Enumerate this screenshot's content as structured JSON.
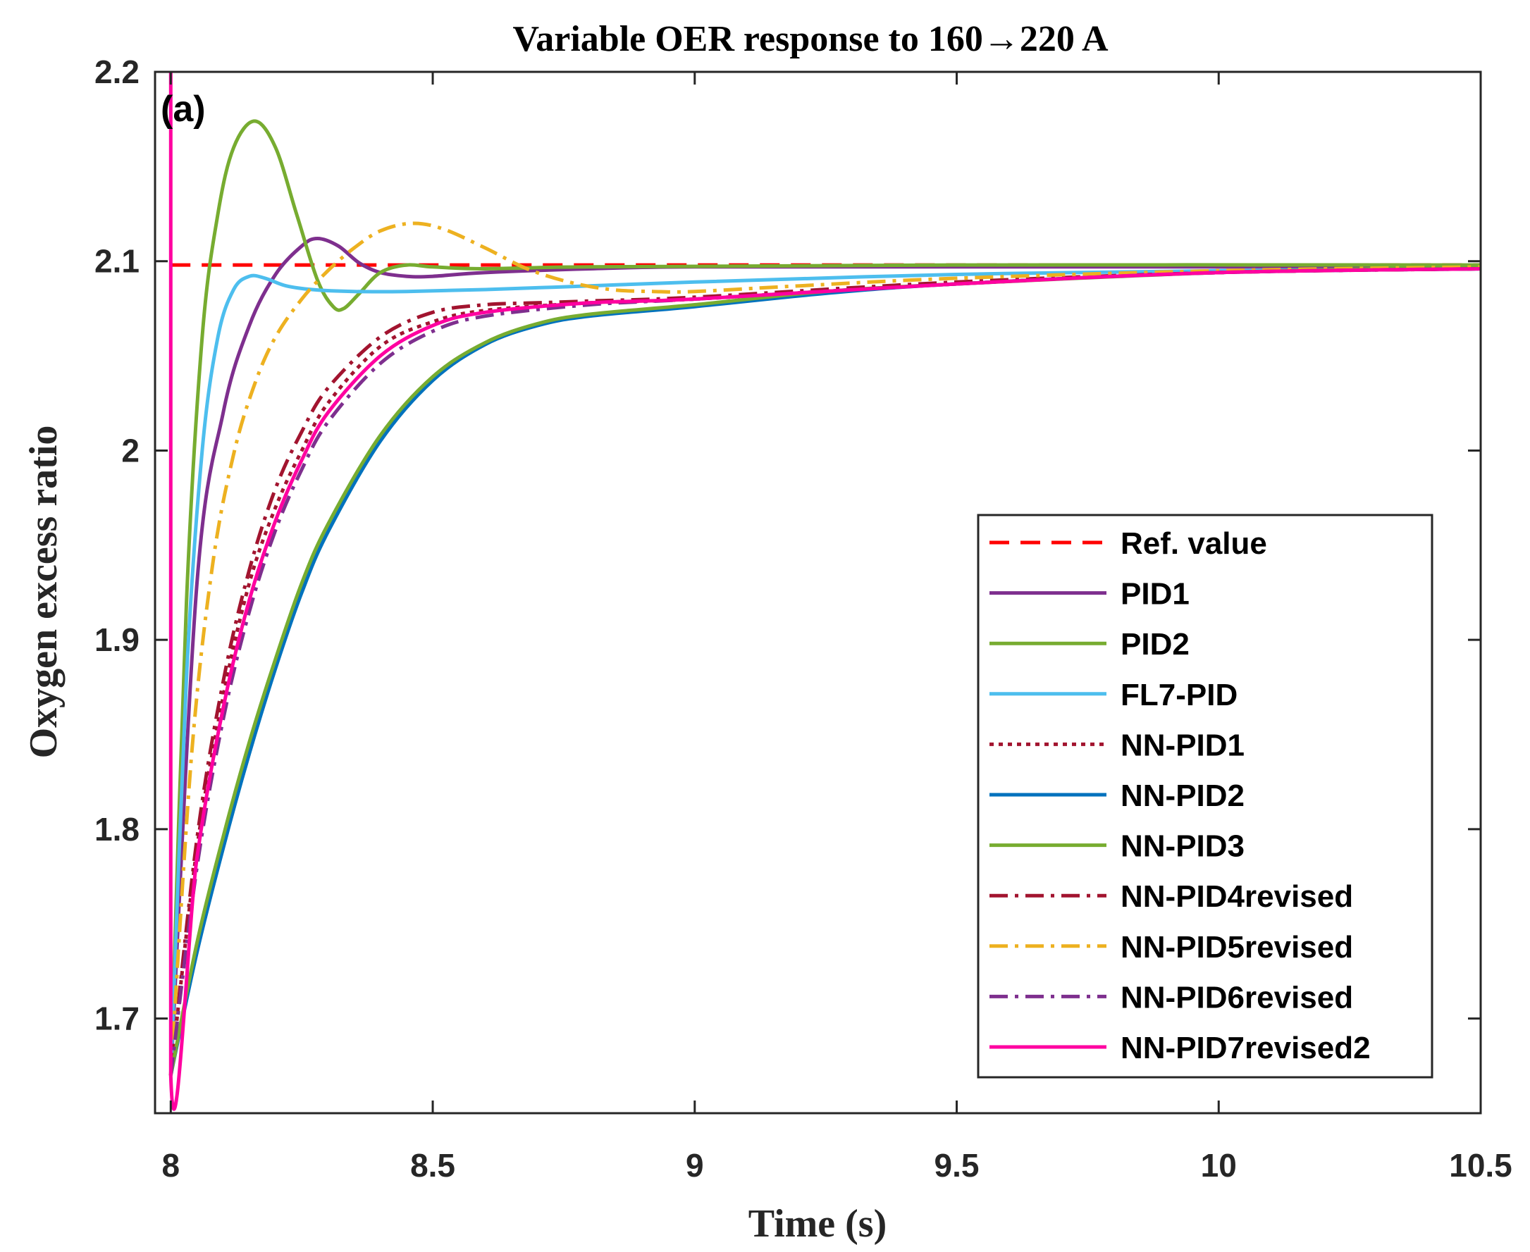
{
  "chart_data": {
    "type": "line",
    "title": "Variable OER response to  160→220 A",
    "panel_label": "(a)",
    "xlabel": "Time (s)",
    "ylabel": "Oxygen excess ratio",
    "xlim": [
      7.97,
      10.5
    ],
    "ylim": [
      1.65,
      2.2
    ],
    "xticks": [
      8,
      8.5,
      9,
      9.5,
      10,
      10.5
    ],
    "xtick_labels": [
      "8",
      "8.5",
      "9",
      "9.5",
      "10",
      "10.5"
    ],
    "yticks": [
      1.7,
      1.8,
      1.9,
      2.0,
      2.1,
      2.2
    ],
    "ytick_labels": [
      "1.7",
      "1.8",
      "1.9",
      "2",
      "2.1",
      "2.2"
    ],
    "grid": false,
    "legend_position": "bottom-right",
    "series": [
      {
        "name": "Ref. value",
        "color": "#ff0000",
        "dash": "dashed",
        "points": [
          [
            8.0,
            2.098
          ],
          [
            10.5,
            2.098
          ]
        ]
      },
      {
        "name": "PID1",
        "color": "#7e2f8e",
        "dash": "solid",
        "points": [
          [
            8.0,
            1.67
          ],
          [
            8.05,
            1.93
          ],
          [
            8.1,
            2.02
          ],
          [
            8.15,
            2.066
          ],
          [
            8.2,
            2.093
          ],
          [
            8.25,
            2.108
          ],
          [
            8.28,
            2.112
          ],
          [
            8.32,
            2.108
          ],
          [
            8.36,
            2.099
          ],
          [
            8.4,
            2.094
          ],
          [
            8.45,
            2.092
          ],
          [
            8.5,
            2.092
          ],
          [
            8.6,
            2.094
          ],
          [
            8.8,
            2.096
          ],
          [
            9.0,
            2.097
          ],
          [
            9.5,
            2.097
          ],
          [
            10.0,
            2.097
          ],
          [
            10.5,
            2.097
          ]
        ]
      },
      {
        "name": "PID2",
        "color": "#77ac30",
        "dash": "solid",
        "points": [
          [
            8.0,
            1.67
          ],
          [
            8.03,
            1.92
          ],
          [
            8.06,
            2.06
          ],
          [
            8.09,
            2.125
          ],
          [
            8.12,
            2.16
          ],
          [
            8.16,
            2.174
          ],
          [
            8.2,
            2.16
          ],
          [
            8.24,
            2.125
          ],
          [
            8.28,
            2.09
          ],
          [
            8.31,
            2.076
          ],
          [
            8.33,
            2.075
          ],
          [
            8.36,
            2.083
          ],
          [
            8.4,
            2.094
          ],
          [
            8.45,
            2.098
          ],
          [
            8.5,
            2.097
          ],
          [
            8.6,
            2.096
          ],
          [
            8.8,
            2.097
          ],
          [
            9.5,
            2.098
          ],
          [
            10.5,
            2.098
          ]
        ]
      },
      {
        "name": "FL7-PID",
        "color": "#4dbeee",
        "dash": "solid",
        "points": [
          [
            8.0,
            1.67
          ],
          [
            8.03,
            1.88
          ],
          [
            8.06,
            2.0
          ],
          [
            8.09,
            2.06
          ],
          [
            8.12,
            2.085
          ],
          [
            8.15,
            2.092
          ],
          [
            8.18,
            2.091
          ],
          [
            8.22,
            2.087
          ],
          [
            8.27,
            2.085
          ],
          [
            8.35,
            2.084
          ],
          [
            8.45,
            2.084
          ],
          [
            8.6,
            2.085
          ],
          [
            8.8,
            2.087
          ],
          [
            9.0,
            2.089
          ],
          [
            9.5,
            2.093
          ],
          [
            10.0,
            2.095
          ],
          [
            10.5,
            2.096
          ]
        ]
      },
      {
        "name": "NN-PID1",
        "color": "#a2142f",
        "dash": "dotted",
        "points": [
          [
            8.0,
            1.67
          ],
          [
            8.05,
            1.79
          ],
          [
            8.1,
            1.87
          ],
          [
            8.15,
            1.93
          ],
          [
            8.2,
            1.97
          ],
          [
            8.25,
            2.0
          ],
          [
            8.3,
            2.025
          ],
          [
            8.4,
            2.055
          ],
          [
            8.5,
            2.068
          ],
          [
            8.6,
            2.074
          ],
          [
            8.8,
            2.078
          ],
          [
            9.0,
            2.08
          ],
          [
            9.5,
            2.088
          ],
          [
            10.0,
            2.094
          ],
          [
            10.5,
            2.096
          ]
        ]
      },
      {
        "name": "NN-PID2",
        "color": "#0072bd",
        "dash": "solid",
        "points": [
          [
            8.0,
            1.67
          ],
          [
            8.05,
            1.735
          ],
          [
            8.1,
            1.79
          ],
          [
            8.15,
            1.84
          ],
          [
            8.2,
            1.885
          ],
          [
            8.25,
            1.925
          ],
          [
            8.3,
            1.957
          ],
          [
            8.4,
            2.005
          ],
          [
            8.5,
            2.037
          ],
          [
            8.6,
            2.056
          ],
          [
            8.7,
            2.066
          ],
          [
            8.8,
            2.071
          ],
          [
            9.0,
            2.076
          ],
          [
            9.25,
            2.083
          ],
          [
            9.5,
            2.088
          ],
          [
            10.0,
            2.094
          ],
          [
            10.5,
            2.096
          ]
        ]
      },
      {
        "name": "NN-PID3",
        "color": "#77ac30",
        "dash": "solid",
        "points": [
          [
            8.0,
            1.67
          ],
          [
            8.05,
            1.74
          ],
          [
            8.1,
            1.796
          ],
          [
            8.15,
            1.846
          ],
          [
            8.2,
            1.89
          ],
          [
            8.25,
            1.93
          ],
          [
            8.3,
            1.961
          ],
          [
            8.4,
            2.008
          ],
          [
            8.5,
            2.039
          ],
          [
            8.6,
            2.057
          ],
          [
            8.7,
            2.067
          ],
          [
            8.8,
            2.072
          ],
          [
            9.0,
            2.077
          ],
          [
            9.25,
            2.084
          ],
          [
            9.5,
            2.088
          ],
          [
            10.0,
            2.094
          ],
          [
            10.5,
            2.097
          ]
        ]
      },
      {
        "name": "NN-PID4revised",
        "color": "#a2142f",
        "dash": "dashdot",
        "points": [
          [
            8.0,
            1.67
          ],
          [
            8.05,
            1.795
          ],
          [
            8.1,
            1.878
          ],
          [
            8.15,
            1.937
          ],
          [
            8.2,
            1.98
          ],
          [
            8.25,
            2.01
          ],
          [
            8.3,
            2.033
          ],
          [
            8.4,
            2.06
          ],
          [
            8.5,
            2.073
          ],
          [
            8.6,
            2.077
          ],
          [
            8.7,
            2.078
          ],
          [
            8.8,
            2.079
          ],
          [
            9.0,
            2.081
          ],
          [
            9.5,
            2.089
          ],
          [
            10.0,
            2.094
          ],
          [
            10.5,
            2.096
          ]
        ]
      },
      {
        "name": "NN-PID5revised",
        "color": "#edb120",
        "dash": "dashdot",
        "points": [
          [
            8.0,
            1.67
          ],
          [
            8.04,
            1.84
          ],
          [
            8.08,
            1.94
          ],
          [
            8.12,
            1.998
          ],
          [
            8.16,
            2.035
          ],
          [
            8.2,
            2.06
          ],
          [
            8.25,
            2.08
          ],
          [
            8.3,
            2.095
          ],
          [
            8.35,
            2.107
          ],
          [
            8.4,
            2.116
          ],
          [
            8.46,
            2.12
          ],
          [
            8.52,
            2.117
          ],
          [
            8.6,
            2.107
          ],
          [
            8.68,
            2.096
          ],
          [
            8.76,
            2.089
          ],
          [
            8.84,
            2.085
          ],
          [
            8.92,
            2.084
          ],
          [
            9.0,
            2.084
          ],
          [
            9.2,
            2.087
          ],
          [
            9.5,
            2.091
          ],
          [
            10.0,
            2.095
          ],
          [
            10.5,
            2.097
          ]
        ]
      },
      {
        "name": "NN-PID6revised",
        "color": "#7e2f8e",
        "dash": "dashdot",
        "points": [
          [
            8.0,
            1.67
          ],
          [
            8.05,
            1.78
          ],
          [
            8.1,
            1.858
          ],
          [
            8.15,
            1.915
          ],
          [
            8.2,
            1.958
          ],
          [
            8.25,
            1.99
          ],
          [
            8.3,
            2.015
          ],
          [
            8.4,
            2.046
          ],
          [
            8.5,
            2.063
          ],
          [
            8.6,
            2.071
          ],
          [
            8.8,
            2.077
          ],
          [
            9.0,
            2.08
          ],
          [
            9.5,
            2.088
          ],
          [
            10.0,
            2.094
          ],
          [
            10.5,
            2.096
          ]
        ]
      },
      {
        "name": "NN-PID7revised2",
        "color": "#ff00a0",
        "dash": "solid",
        "points": [
          [
            8.0,
            2.2
          ],
          [
            8.0,
            1.67
          ],
          [
            8.05,
            1.785
          ],
          [
            8.1,
            1.864
          ],
          [
            8.15,
            1.921
          ],
          [
            8.2,
            1.963
          ],
          [
            8.25,
            1.995
          ],
          [
            8.3,
            2.02
          ],
          [
            8.4,
            2.05
          ],
          [
            8.5,
            2.066
          ],
          [
            8.6,
            2.073
          ],
          [
            8.8,
            2.078
          ],
          [
            9.0,
            2.08
          ],
          [
            9.5,
            2.088
          ],
          [
            10.0,
            2.094
          ],
          [
            10.5,
            2.096
          ]
        ]
      }
    ]
  }
}
